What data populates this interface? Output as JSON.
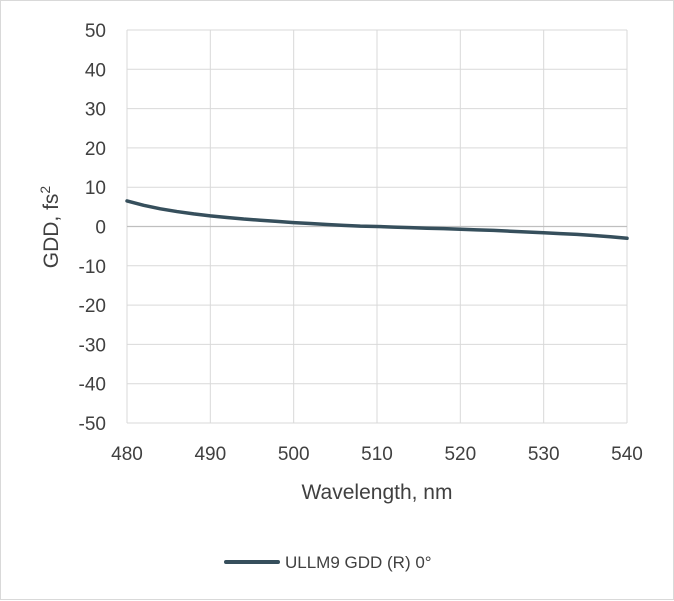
{
  "chart_data": {
    "type": "line",
    "title": "",
    "xlabel": "Wavelength, nm",
    "ylabel": "GDD, fs",
    "ylabel_superscript": "2",
    "xlim": [
      480,
      540
    ],
    "ylim": [
      -50,
      50
    ],
    "x_ticks": [
      480,
      490,
      500,
      510,
      520,
      530,
      540
    ],
    "y_ticks": [
      50,
      40,
      30,
      20,
      10,
      0,
      -10,
      -20,
      -30,
      -40,
      -50
    ],
    "grid": true,
    "legend_position": "bottom",
    "series": [
      {
        "name": "ULLM9 GDD (R) 0°",
        "color": "#364f5c",
        "x": [
          480,
          482,
          484,
          486,
          488,
          490,
          492,
          494,
          496,
          498,
          500,
          502,
          504,
          506,
          508,
          510,
          512,
          514,
          516,
          518,
          520,
          522,
          524,
          526,
          528,
          530,
          532,
          534,
          536,
          538,
          540
        ],
        "y": [
          6.5,
          5.4,
          4.5,
          3.8,
          3.2,
          2.7,
          2.3,
          1.9,
          1.6,
          1.3,
          1.0,
          0.75,
          0.5,
          0.3,
          0.1,
          0.0,
          -0.15,
          -0.3,
          -0.45,
          -0.55,
          -0.7,
          -0.85,
          -1.0,
          -1.2,
          -1.4,
          -1.6,
          -1.8,
          -2.0,
          -2.3,
          -2.6,
          -3.0
        ]
      }
    ]
  }
}
